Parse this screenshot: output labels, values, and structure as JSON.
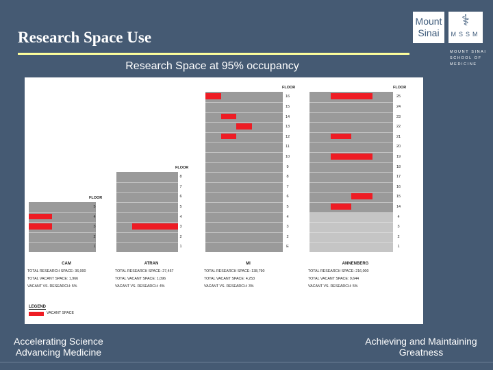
{
  "slide": {
    "title": "Research Space Use",
    "subtitle": "Research Space at 95% occupancy",
    "footer_left_1": "Accelerating Science",
    "footer_left_2": "Advancing Medicine",
    "footer_right_1": "Achieving and Maintaining",
    "footer_right_2": "Greatness"
  },
  "logo": {
    "line1": "Mount",
    "line2": "Sinai",
    "emblem": "MSSM",
    "school_1": "MOUNT SINAI",
    "school_2": "SCHOOL OF",
    "school_3": "MEDICINE"
  },
  "colors": {
    "vacant": "#ee1c24",
    "building": "#9a9a9a",
    "background": "#455a73",
    "accent_rule": "#ffff9c"
  },
  "chart_data": {
    "type": "table",
    "floor_header": "FLOOR",
    "legend_title": "LEGEND",
    "legend_label": "VACANT SPACE",
    "buildings": [
      {
        "name": "CAM",
        "floors": [
          "5",
          "4",
          "3",
          "2",
          "1"
        ],
        "vacant": [
          {
            "floor": "4",
            "extent": [
              0,
              0.35
            ]
          },
          {
            "floor": "3",
            "extent": [
              0,
              0.35
            ]
          }
        ],
        "stats": [
          "TOTAL RESEARCH SPACE: 36,000",
          "TOTAL VACANT SPACE: 1,966",
          "VACANT VS. RESEARCH: 5%"
        ]
      },
      {
        "name": "ATRAN",
        "floors": [
          "8",
          "7",
          "6",
          "5",
          "4",
          "3",
          "2",
          "1"
        ],
        "vacant": [
          {
            "floor": "3",
            "extent": [
              0.25,
              1.0
            ]
          }
        ],
        "stats": [
          "TOTAL RESEARCH SPACE: 27,457",
          "TOTAL VACANT SPACE: 1,096",
          "VACANT VS. RESEARCH: 4%"
        ]
      },
      {
        "name": "MI",
        "floors": [
          "16",
          "15",
          "14",
          "13",
          "12",
          "11",
          "10",
          "9",
          "8",
          "7",
          "6",
          "5",
          "4",
          "3",
          "2",
          "E"
        ],
        "vacant": [
          {
            "floor": "16",
            "extent": [
              0,
              0.2
            ]
          },
          {
            "floor": "14",
            "extent": [
              0.2,
              0.4
            ]
          },
          {
            "floor": "13",
            "extent": [
              0.4,
              0.6
            ]
          },
          {
            "floor": "12",
            "extent": [
              0.2,
              0.4
            ]
          }
        ],
        "stats": [
          "TOTAL RESEARCH SPACE: 138,790",
          "TOTAL VACANT SPACE: 4,253",
          "VACANT VS. RESEARCH: 3%"
        ]
      },
      {
        "name": "ANNENBERG",
        "floors": [
          "25",
          "24",
          "23",
          "22",
          "21",
          "20",
          "19",
          "18",
          "17",
          "16",
          "15",
          "14"
        ],
        "lower_floors": [
          "4",
          "3",
          "2",
          "1"
        ],
        "vacant": [
          {
            "floor": "25",
            "extent": [
              0.25,
              0.75
            ]
          },
          {
            "floor": "21",
            "extent": [
              0.25,
              0.5
            ]
          },
          {
            "floor": "19",
            "extent": [
              0.25,
              0.5
            ]
          },
          {
            "floor": "19",
            "extent": [
              0.5,
              0.75
            ]
          },
          {
            "floor": "15",
            "extent": [
              0.5,
              0.75
            ]
          },
          {
            "floor": "14",
            "extent": [
              0.25,
              0.5
            ]
          }
        ],
        "stats": [
          "TOTAL RESEARCH SPACE: 216,000",
          "TOTAL VACANT SPACE: 9,644",
          "VACANT VS. RESEARCH: 5%"
        ]
      }
    ]
  }
}
